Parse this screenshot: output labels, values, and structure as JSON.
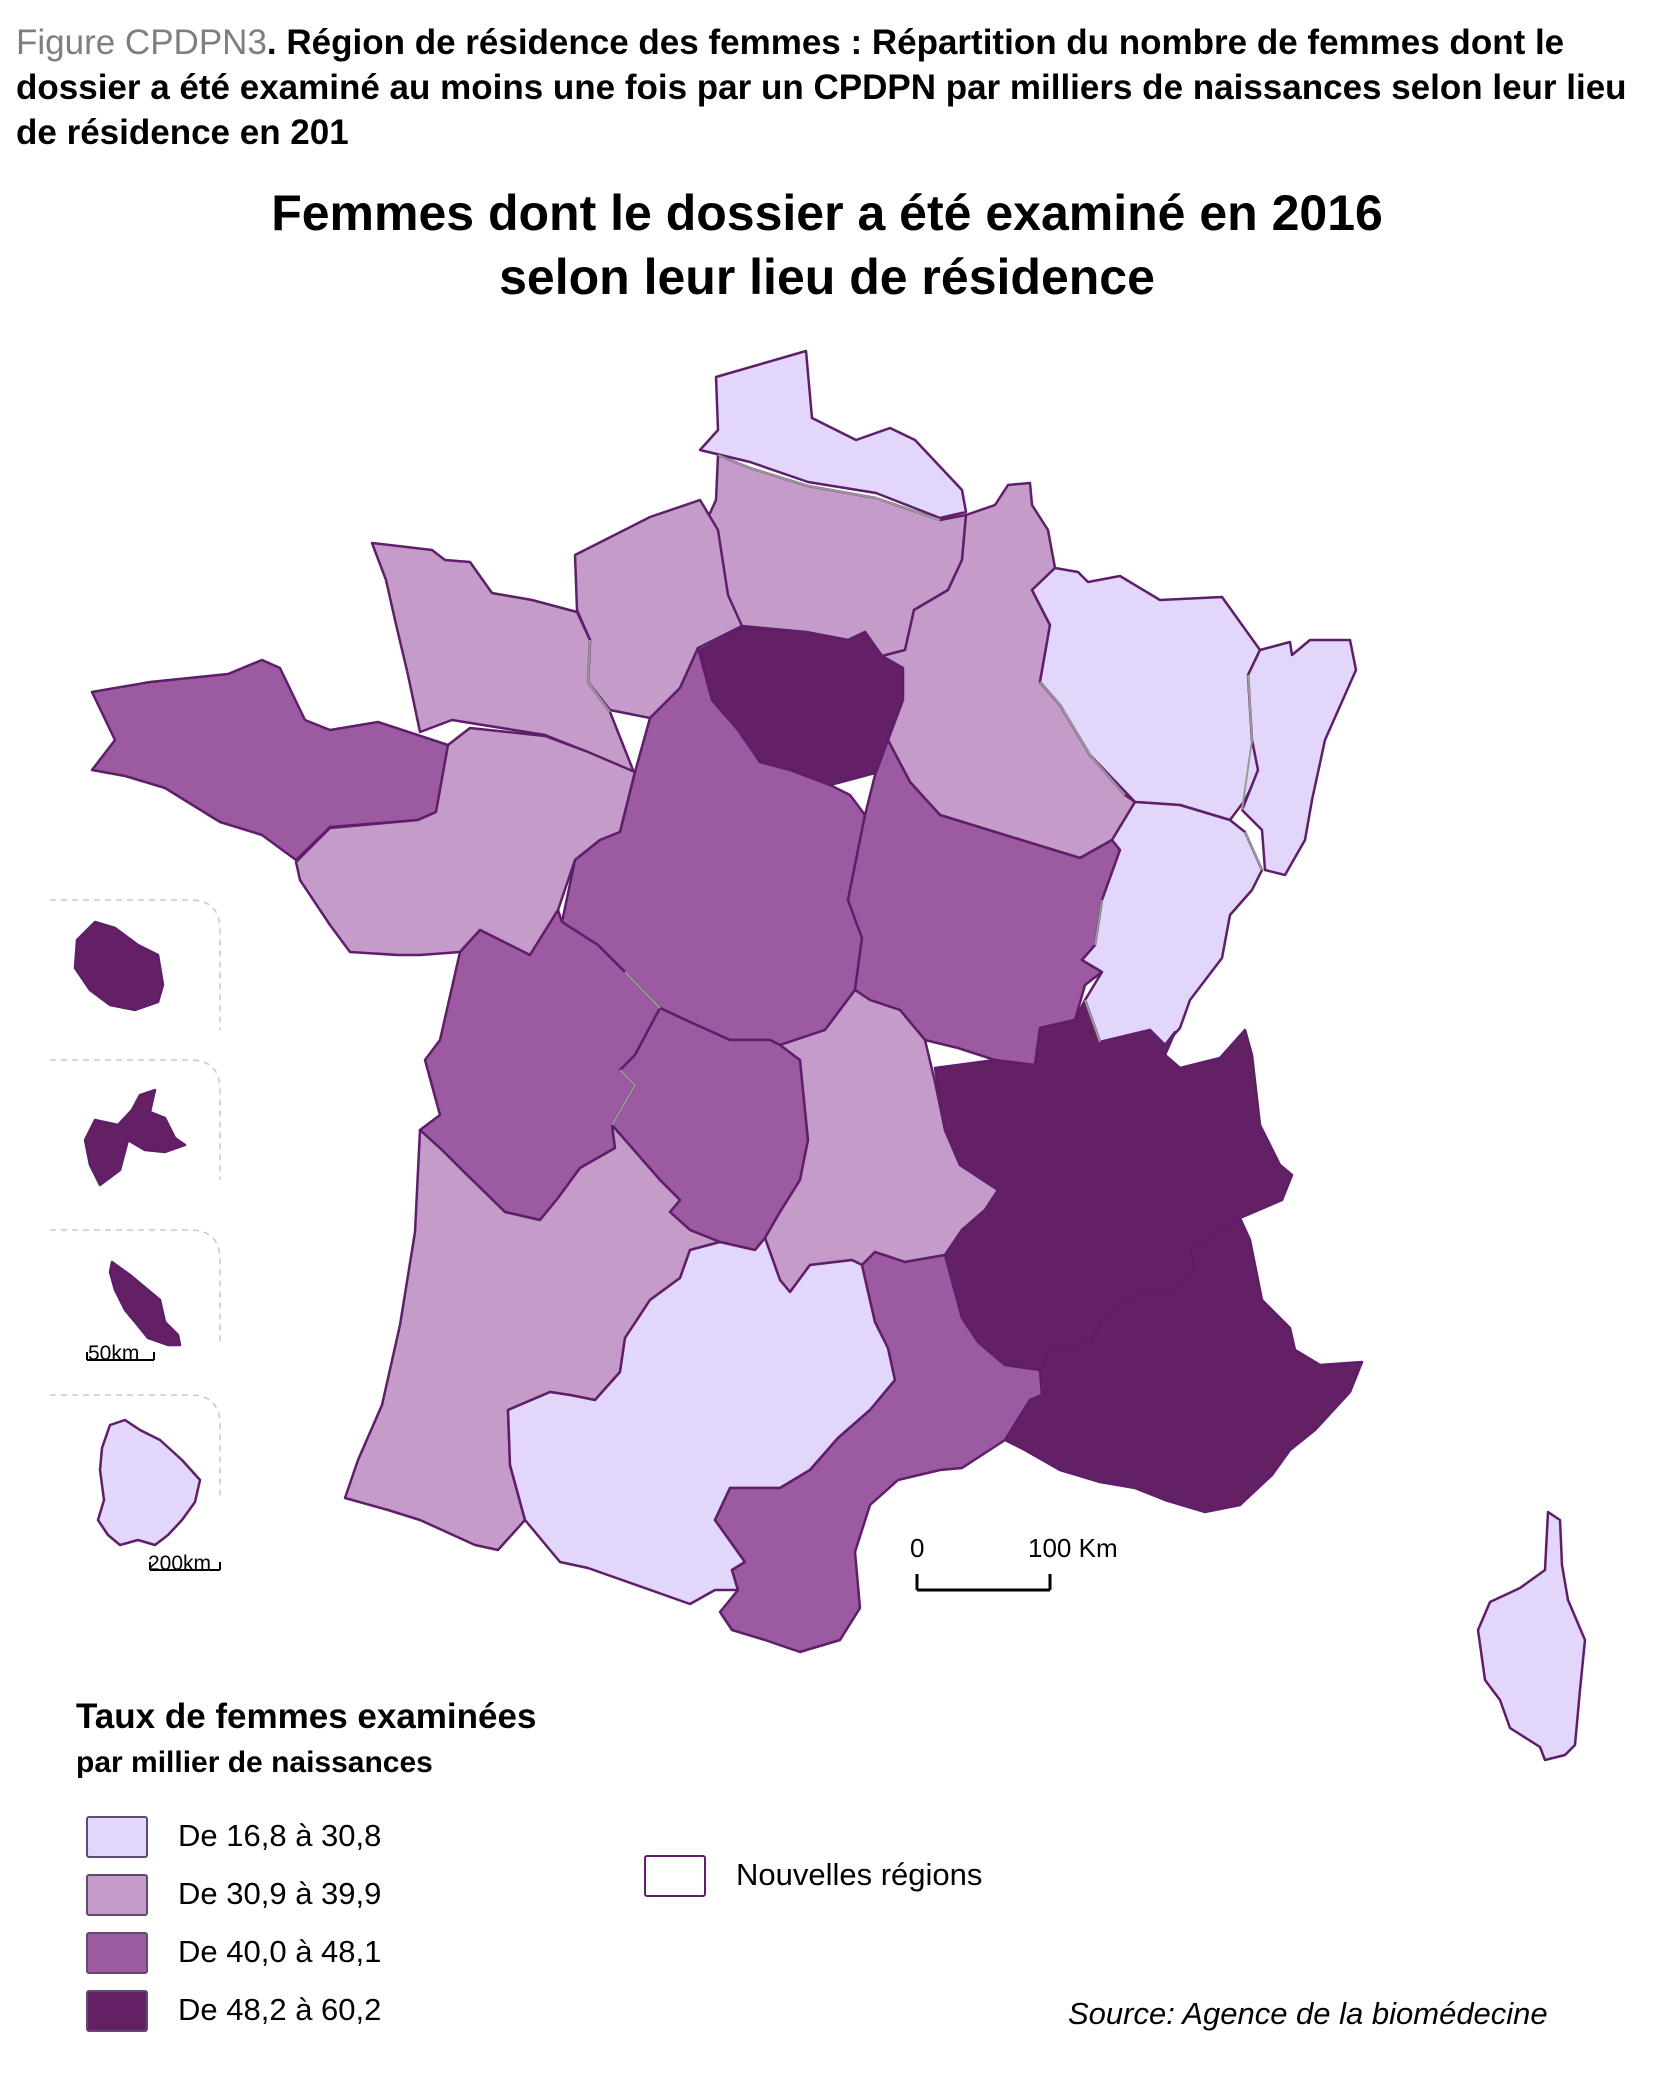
{
  "caption": {
    "label": "Figure CPDPN3",
    "text": ". Région de résidence des femmes : Répartition du nombre de femmes dont le dossier a été examiné au moins une fois par un CPDPN par milliers de naissances selon leur lieu de résidence en 201"
  },
  "map": {
    "title_line1": "Femmes dont le dossier a été examiné en 2016",
    "title_line2": "selon leur lieu de résidence",
    "scale_start": "0",
    "scale_end": "100 Km",
    "inset_scale_1": "50km",
    "inset_scale_2": "200km",
    "source": "Source: Agence de la biomédecine"
  },
  "legend": {
    "title": "Taux de femmes examinées",
    "subtitle": "par millier de naissances",
    "classes": [
      {
        "label": "De 16,8 à 30,8",
        "color": "#e2d7fb"
      },
      {
        "label": "De 30,9 à 39,9",
        "color": "#c59cc9"
      },
      {
        "label": "De 40,0 à 48,1",
        "color": "#9c5aa1"
      },
      {
        "label": "De 48,2 à 60,2",
        "color": "#632065"
      }
    ],
    "regions_label": "Nouvelles régions"
  },
  "colors": {
    "class_1": "#e2d7fb",
    "class_2": "#c59cc9",
    "class_3": "#9c5aa1",
    "class_4": "#632065",
    "region_border": "#5f1e6a",
    "department_border": "#9a9a9a"
  }
}
